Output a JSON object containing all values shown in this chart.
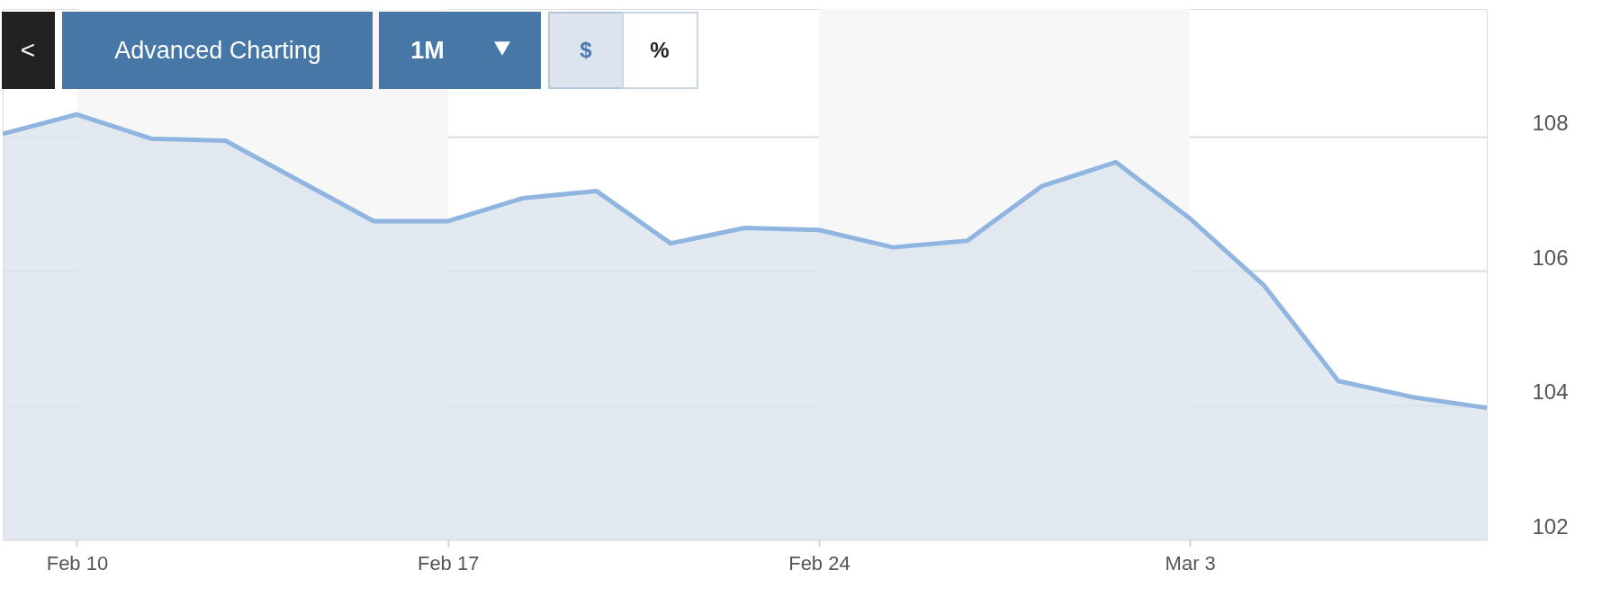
{
  "chart_data": {
    "type": "area",
    "categories": [
      null,
      "Feb 10",
      null,
      null,
      null,
      null,
      "Feb 17",
      null,
      null,
      null,
      null,
      "Feb 24",
      null,
      null,
      null,
      null,
      "Mar 3",
      null,
      null,
      null,
      null
    ],
    "series": [
      {
        "color": "#8fb5e0",
        "values": [
          108.04,
          108.33,
          107.97,
          107.94,
          107.34,
          106.74,
          106.74,
          107.08,
          107.19,
          106.41,
          106.64,
          106.61,
          106.35,
          106.45,
          107.26,
          107.62,
          106.78,
          105.78,
          104.36,
          104.12,
          103.96
        ]
      }
    ],
    "ylim": [
      102,
      109.9
    ],
    "yticks": [
      102,
      104,
      106,
      108
    ],
    "bands": [
      {
        "axis": "x",
        "from": "Feb 10",
        "to": "Feb 17",
        "color": "#f7f7f7"
      },
      {
        "axis": "x",
        "from": "Feb 24",
        "to": "Mar 3",
        "color": "#f7f7f7"
      }
    ],
    "annotations": [
      "<",
      "Advanced Charting",
      "1M",
      "$",
      "%"
    ],
    "grid": "y",
    "marker": "none",
    "line_style": "solid"
  }
}
